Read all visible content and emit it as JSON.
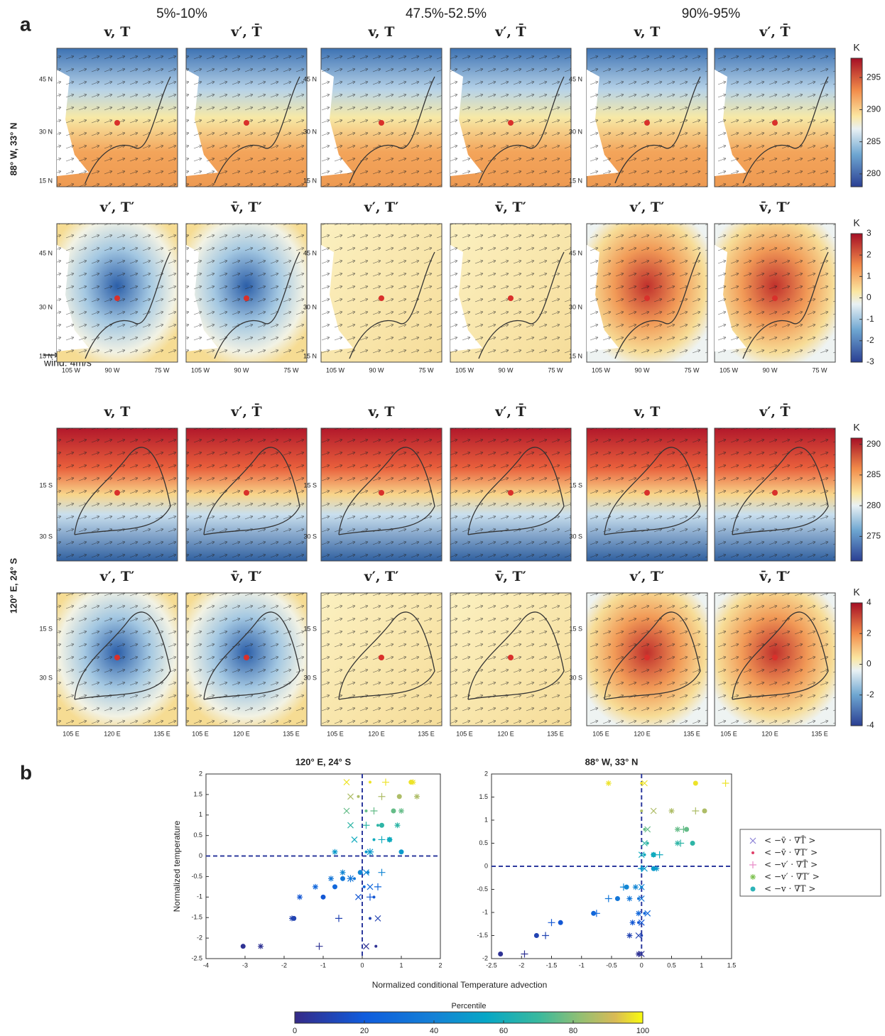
{
  "panel_a": {
    "label": "a",
    "column_titles": [
      "5%-10%",
      "47.5%-52.5%",
      "90%-95%"
    ],
    "row_labels": [
      "88° W, 33° N",
      "120° E, 24° S"
    ],
    "panel_titles": [
      [
        "v, T",
        "v′, T̄",
        "v, T",
        "v′, T̄",
        "v, T",
        "v′, T̄"
      ],
      [
        "v′, T′",
        "v̄, T′",
        "v′, T′",
        "v̄, T′",
        "v′, T′",
        "v̄, T′"
      ],
      [
        "v, T",
        "v′, T̄",
        "v, T",
        "v′, T̄",
        "v, T",
        "v′, T̄"
      ],
      [
        "v′, T′",
        "v̄, T′",
        "v′, T′",
        "v̄, T′",
        "v′, T′",
        "v̄, T′"
      ]
    ],
    "lat_labels": [
      [
        "45 N",
        "30 N",
        "15 N"
      ],
      [
        "45 N",
        "30 N",
        "15 N"
      ],
      [
        "15 S",
        "30 S"
      ],
      [
        "15 S",
        "30 S"
      ]
    ],
    "lon_labels": [
      [
        "105 W",
        "90 W",
        "75 W"
      ],
      [
        "105 E",
        "120 E",
        "135 E"
      ]
    ],
    "wind_label": "wind: 4m/s",
    "colorbars": [
      {
        "unit": "K",
        "lim": [
          278,
          298
        ],
        "ticks": [
          280,
          285,
          290,
          295
        ]
      },
      {
        "unit": "K",
        "lim": [
          -3,
          3
        ],
        "ticks": [
          -3,
          -2,
          -1,
          0,
          1,
          2,
          3
        ]
      },
      {
        "unit": "K",
        "lim": [
          271,
          291
        ],
        "ticks": [
          275,
          280,
          285,
          290
        ]
      },
      {
        "unit": "K",
        "lim": [
          -4,
          4
        ],
        "ticks": [
          -4,
          -2,
          0,
          2,
          4
        ]
      }
    ]
  },
  "panel_b": {
    "label": "b",
    "xlabel": "Normalized conditional Temperature advection",
    "ylabel": "Normalized temperature",
    "colorbar": {
      "title": "Percentile",
      "lim": [
        0,
        100
      ],
      "ticks": [
        0,
        20,
        40,
        60,
        80,
        100
      ]
    }
  },
  "chart_data": [
    {
      "type": "scatter",
      "title": "120° E, 24° S",
      "xlim": [
        -4,
        2
      ],
      "ylim": [
        -2.5,
        2
      ],
      "xticks": [
        -4,
        -3,
        -2,
        -1,
        0,
        1,
        2
      ],
      "yticks": [
        -2.5,
        -2,
        -1.5,
        -1,
        -0.5,
        0,
        0.5,
        1,
        1.5,
        2
      ],
      "percentiles": [
        3,
        10,
        18,
        26,
        34,
        42,
        50,
        58,
        67,
        76,
        86,
        97
      ],
      "series": [
        {
          "name": "< −v̄ · ∇T̄ >",
          "color": "#8a7fd6",
          "marker": "x",
          "x": [
            0.1,
            0.4,
            -0.1,
            0.2,
            -0.3,
            0.1,
            0.2,
            -0.2,
            -0.3,
            -0.4,
            -0.3,
            -0.4
          ],
          "values": [
            -2.2,
            -1.52,
            -1.0,
            -0.75,
            -0.55,
            -0.4,
            0.1,
            0.4,
            0.75,
            1.1,
            1.45,
            1.8
          ]
        },
        {
          "name": "< −v̄ · ∇T′ >",
          "color": "#e0406a",
          "marker": "dot",
          "x": [
            0.35,
            0.2,
            0.3,
            0.05,
            -0.2,
            0.15,
            0.1,
            0.3,
            0.4,
            0.1,
            -0.1,
            0.2
          ],
          "values": [
            -2.2,
            -1.52,
            -1.0,
            -0.75,
            -0.55,
            -0.4,
            0.1,
            0.4,
            0.75,
            1.1,
            1.45,
            1.8
          ]
        },
        {
          "name": "< −v′ · ∇T̄ >",
          "color": "#e88ac8",
          "marker": "plus",
          "x": [
            -1.1,
            -0.6,
            0.2,
            0.4,
            -0.3,
            0.5,
            0.2,
            0.5,
            0.1,
            0.3,
            0.5,
            0.6
          ],
          "values": [
            -2.2,
            -1.52,
            -1.0,
            -0.75,
            -0.55,
            -0.4,
            0.1,
            0.4,
            0.75,
            1.1,
            1.45,
            1.8
          ]
        },
        {
          "name": "< −v′ · ∇T′ >",
          "color": "#7cc04f",
          "marker": "asterisk",
          "x": [
            -2.6,
            -1.8,
            -1.6,
            -1.2,
            -0.8,
            -0.5,
            -0.7,
            0.7,
            0.9,
            1.0,
            1.4,
            1.3
          ],
          "values": [
            -2.2,
            -1.52,
            -1.0,
            -0.75,
            -0.55,
            -0.4,
            0.1,
            0.4,
            0.75,
            1.1,
            1.45,
            1.8
          ]
        },
        {
          "name": "< −v · ∇T >",
          "color": "#2db3b8",
          "marker": "circle",
          "x": [
            -3.05,
            -1.75,
            -1.0,
            -0.7,
            -0.5,
            -0.05,
            1.0,
            0.7,
            0.5,
            0.8,
            0.95,
            1.25
          ],
          "values": [
            -2.2,
            -1.52,
            -1.0,
            -0.75,
            -0.55,
            -0.4,
            0.1,
            0.4,
            0.75,
            1.1,
            1.45,
            1.8
          ]
        }
      ]
    },
    {
      "type": "scatter",
      "title": "88° W, 33° N",
      "xlim": [
        -2.5,
        1.5
      ],
      "ylim": [
        -2,
        2
      ],
      "xticks": [
        -2.5,
        -2,
        -1.5,
        -1,
        -0.5,
        0,
        0.5,
        1,
        1.5
      ],
      "yticks": [
        -2,
        -1.5,
        -1,
        -0.5,
        0,
        0.5,
        1,
        1.5,
        2
      ],
      "percentiles": [
        3,
        10,
        18,
        26,
        34,
        42,
        50,
        58,
        67,
        76,
        86,
        97
      ],
      "series": [
        {
          "color": "#8a7fd6",
          "marker": "x",
          "x": [
            0.0,
            -0.05,
            0.0,
            0.1,
            0.0,
            0.0,
            0.05,
            0.0,
            0.05,
            0.1,
            0.2,
            0.05
          ],
          "values": [
            -1.9,
            -1.5,
            -1.22,
            -1.02,
            -0.7,
            -0.45,
            -0.05,
            0.25,
            0.5,
            0.8,
            1.2,
            1.8
          ]
        },
        {
          "color": "#e0406a",
          "marker": "dot",
          "x": [
            -0.05,
            0.0,
            -0.05,
            0.05,
            -0.05,
            0.0,
            0.0,
            0.05,
            0.1,
            0.05,
            0.0,
            0.0
          ],
          "values": [
            -1.9,
            -1.5,
            -1.22,
            -1.02,
            -0.7,
            -0.45,
            -0.05,
            0.25,
            0.5,
            0.8,
            1.2,
            1.8
          ]
        },
        {
          "color": "#e88ac8",
          "marker": "plus",
          "x": [
            -1.95,
            -1.6,
            -1.5,
            -0.75,
            -0.55,
            -0.3,
            0.0,
            0.3,
            0.65,
            0.7,
            0.9,
            1.4
          ],
          "values": [
            -1.9,
            -1.5,
            -1.22,
            -1.02,
            -0.7,
            -0.45,
            -0.05,
            0.25,
            0.5,
            0.8,
            1.2,
            1.8
          ]
        },
        {
          "color": "#7cc04f",
          "marker": "asterisk",
          "x": [
            -0.05,
            -0.2,
            -0.15,
            -0.05,
            -0.2,
            -0.1,
            0.25,
            0.2,
            0.6,
            0.6,
            0.5,
            -0.55
          ],
          "values": [
            -1.9,
            -1.5,
            -1.22,
            -1.02,
            -0.7,
            -0.45,
            -0.05,
            0.25,
            0.5,
            0.8,
            1.2,
            1.8
          ]
        },
        {
          "color": "#2db3b8",
          "marker": "circle",
          "x": [
            -2.35,
            -1.75,
            -1.35,
            -0.8,
            -0.4,
            -0.25,
            0.2,
            0.2,
            0.85,
            0.75,
            1.05,
            0.9
          ],
          "values": [
            -1.9,
            -1.5,
            -1.22,
            -1.02,
            -0.7,
            -0.45,
            -0.05,
            0.25,
            0.5,
            0.8,
            1.2,
            1.8
          ]
        }
      ]
    }
  ]
}
